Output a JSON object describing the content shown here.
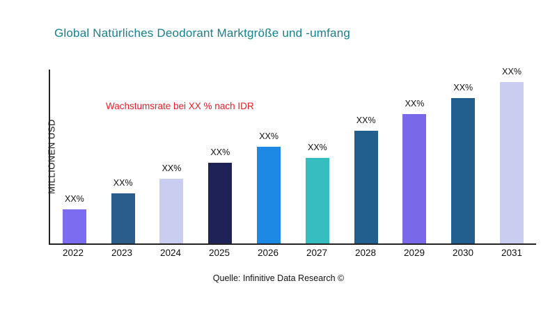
{
  "title": "Global Natürliches Deodorant Marktgröße und -umfang",
  "annotation": "Wachstumsrate bei XX % nach IDR",
  "ylabel": "MILLIONEN USD",
  "source": "Quelle: Infinitive Data Research ©",
  "colors": {
    "title": "#17808e",
    "annotation": "#ee1c25",
    "axis": "#222222"
  },
  "chart_data": {
    "type": "bar",
    "title": "Global Natürliches Deodorant Marktgröße und -umfang",
    "xlabel": "",
    "ylabel": "MILLIONEN USD",
    "categories": [
      "2022",
      "2023",
      "2024",
      "2025",
      "2026",
      "2027",
      "2028",
      "2029",
      "2030",
      "2031"
    ],
    "values": [
      21,
      31,
      40,
      50,
      60,
      53,
      70,
      80,
      90,
      100
    ],
    "bar_labels": [
      "XX%",
      "XX%",
      "XX%",
      "XX%",
      "XX%",
      "XX%",
      "XX%",
      "XX%",
      "XX%",
      "XX%"
    ],
    "bar_colors": [
      "#7b6cf0",
      "#2a5d8a",
      "#c9cdf0",
      "#1e2257",
      "#1e88e5",
      "#35bdbf",
      "#235f8e",
      "#7968e8",
      "#235f8e",
      "#c9cdf0"
    ],
    "ylim": [
      0,
      100
    ],
    "grid": false,
    "legend": false,
    "annotation": "Wachstumsrate bei XX % nach IDR"
  }
}
